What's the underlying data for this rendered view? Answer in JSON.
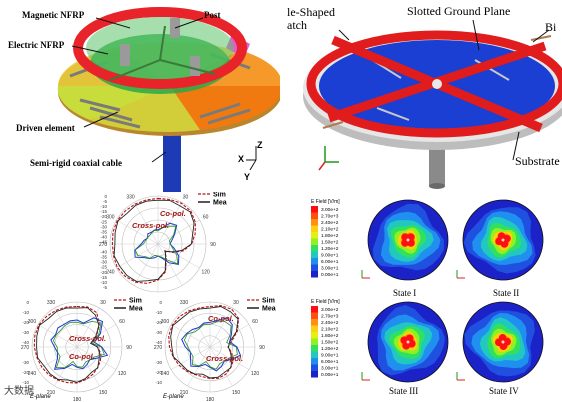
{
  "top_left": {
    "labels": {
      "magnetic_nfrp": "Magnetic NFRP",
      "post": "Post",
      "electric_nfrp": "Electric NFRP",
      "driven_element": "Driven element",
      "coax": "Semi-rigid coaxial cable",
      "axis_x": "X",
      "axis_y": "Y",
      "axis_z": "Z"
    }
  },
  "top_right": {
    "labels": {
      "patch": "le-Shaped\natch",
      "ground": "Slotted Ground Plane",
      "bias": "Bi",
      "substrate": "Substrate"
    }
  },
  "polar_plots": [
    {
      "id": "p1",
      "legend": [
        "Sim",
        "Mea"
      ],
      "labels": [
        "Co-pol.",
        "Cross-pol."
      ],
      "angles": [
        "330",
        "30",
        "300",
        "60",
        "270",
        "90",
        "240",
        "120"
      ],
      "radii": [
        "0",
        "-5",
        "-10",
        "-15",
        "-20",
        "-25",
        "-30",
        "-35",
        "-40",
        "-45",
        "-40",
        "-35",
        "-30",
        "-25",
        "-20",
        "-15",
        "-10",
        "-5"
      ],
      "plane": ""
    },
    {
      "id": "p2",
      "legend": [
        "Sim",
        "Mea"
      ],
      "labels": [
        "Cross-pol.",
        "Co-pol."
      ],
      "angles": [
        "330",
        "30",
        "300",
        "60",
        "270",
        "90",
        "240",
        "120",
        "210",
        "150",
        "180"
      ],
      "radii": [
        "0",
        "-10",
        "-20",
        "-30",
        "-40",
        "-30",
        "-20",
        "-10"
      ],
      "plane": "E-plane"
    },
    {
      "id": "p3",
      "legend": [
        "Sim",
        "Mea"
      ],
      "labels": [
        "Co-pol.",
        "Cross-pol."
      ],
      "angles": [
        "330",
        "30",
        "300",
        "60",
        "270",
        "90",
        "240",
        "120",
        "210",
        "150",
        "180"
      ],
      "radii": [
        "0",
        "-10",
        "-20",
        "-30",
        "-40",
        "-30",
        "-20",
        "-10"
      ],
      "plane": "E-plane"
    }
  ],
  "efield": {
    "title": "E Field [V/m]",
    "scale": [
      "3.00e+2",
      "2.70e+3",
      "2.40e+2",
      "2.10e+2",
      "1.80e+2",
      "1.50e+2",
      "1.20e+2",
      "9.00e+1",
      "6.00e+1",
      "3.00e+1",
      "0.00e+1"
    ],
    "states": [
      "State I",
      "State II",
      "State III",
      "State IV"
    ]
  },
  "watermark": "大数据"
}
